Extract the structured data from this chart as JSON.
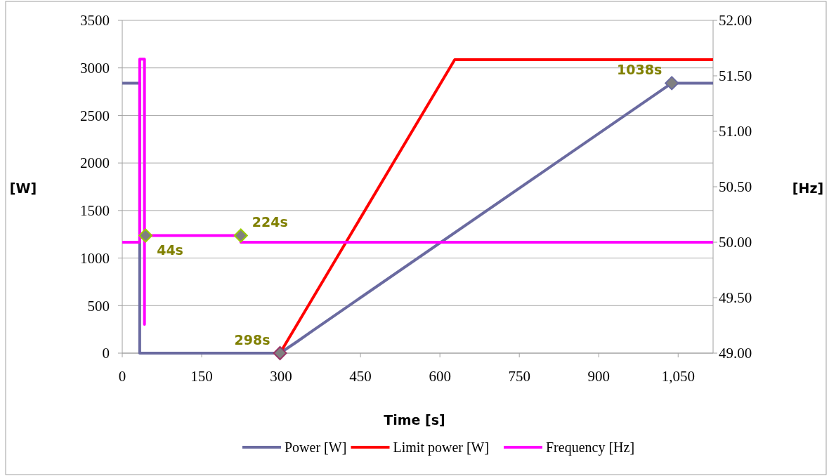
{
  "chart_data": {
    "type": "line",
    "xlabel": "Time [s]",
    "ylabel": "[W]",
    "y2label": "[Hz]",
    "xlim": [
      0,
      1116
    ],
    "xticks": [
      0,
      150,
      300,
      450,
      600,
      750,
      900,
      {
        "value": 1050,
        "label": "1,050"
      }
    ],
    "ylim": [
      0,
      3500
    ],
    "yticks": [
      0,
      500,
      1000,
      1500,
      2000,
      2500,
      3000,
      3500
    ],
    "y2lim": [
      49,
      52
    ],
    "y2ticks": [
      {
        "value": 49,
        "label": "49.00"
      },
      {
        "value": 49.5,
        "label": "49.50"
      },
      {
        "value": 50,
        "label": "50.00"
      },
      {
        "value": 50.5,
        "label": "50.50"
      },
      {
        "value": 51,
        "label": "51.00"
      },
      {
        "value": 51.5,
        "label": "51.50"
      },
      {
        "value": 52,
        "label": "52.00"
      }
    ],
    "grid": "y",
    "legend": "bottom",
    "marker": "none",
    "line_style": "solid",
    "series": [
      {
        "name": "Power [W]",
        "color": "#6a6aa0",
        "x": [
          0,
          33,
          33,
          298,
          330,
          360,
          1038,
          1116
        ],
        "values": [
          2840,
          2840,
          0,
          0,
          120,
          238,
          2840,
          2840
        ]
      },
      {
        "name": "Limit power [W]",
        "color": "#ff0000",
        "x": [
          298,
          628,
          1116
        ],
        "values": [
          0,
          3087,
          3087
        ]
      },
      {
        "name": "Frequency [Hz]",
        "color": "#ff00ff",
        "axis": "y2",
        "x": [
          0,
          33,
          33,
          42,
          42,
          42,
          224,
          224,
          1116
        ],
        "values": [
          50,
          50,
          51.65,
          51.65,
          49.26,
          50.06,
          50.06,
          50,
          50
        ]
      }
    ],
    "annotations": [
      {
        "text": "44s",
        "x": 44,
        "y": 1237
      },
      {
        "text": "224s",
        "x": 224,
        "y": 1237
      },
      {
        "text": "298s",
        "x": 298,
        "y": 0
      },
      {
        "text": "1038s",
        "x": 1038,
        "y": 2840
      }
    ]
  }
}
